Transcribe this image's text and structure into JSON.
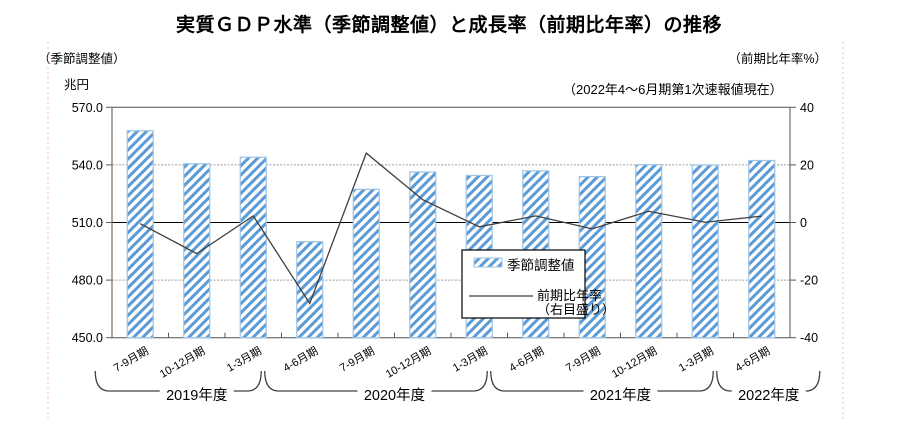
{
  "title": "実質ＧＤＰ水準（季節調整値）と成長率（前期比年率）の推移",
  "header": {
    "left_label": "（季節調整値）",
    "left_unit": "兆円",
    "right_label": "（前期比年率%）",
    "vintage_note": "（2022年4～6月期第1次速報値現在）"
  },
  "legend": {
    "bar_label": "季節調整値",
    "line_label": "前期比年率",
    "line_sublabel": "（右目盛り）"
  },
  "chart_data": {
    "type": "bar+line combo",
    "categories": [
      "7-9月期",
      "10-12月期",
      "1-3月期",
      "4-6月期",
      "7-9月期",
      "10-12月期",
      "1-3月期",
      "4-6月期",
      "7-9月期",
      "10-12月期",
      "1-3月期",
      "4-6月期"
    ],
    "fiscal_year_groups": [
      {
        "label": "2019年度",
        "from": 0,
        "to": 2
      },
      {
        "label": "2020年度",
        "from": 3,
        "to": 6
      },
      {
        "label": "2021年度",
        "from": 7,
        "to": 10
      },
      {
        "label": "2022年度",
        "from": 11,
        "to": 11
      }
    ],
    "series": [
      {
        "name": "季節調整値",
        "type": "bar",
        "axis": "left",
        "unit": "兆円",
        "values": [
          557.8,
          540.6,
          544.0,
          500.0,
          527.3,
          536.3,
          534.5,
          536.9,
          533.9,
          540.1,
          539.9,
          542.3
        ]
      },
      {
        "name": "前期比年率（右目盛り）",
        "type": "line",
        "axis": "right",
        "unit": "%",
        "values": [
          -0.4,
          -10.8,
          2.3,
          -28.1,
          24.1,
          7.9,
          -1.5,
          2.3,
          -2.2,
          3.9,
          0.1,
          2.2
        ]
      }
    ],
    "left_axis": {
      "ticks": [
        "570.0",
        "540.0",
        "510.0",
        "480.0",
        "450.0"
      ],
      "min": 450,
      "max": 570
    },
    "right_axis": {
      "ticks": [
        "40",
        "20",
        "0",
        "-20",
        "-40"
      ],
      "min": -40,
      "max": 40,
      "zero_at": "0"
    },
    "grid": "horizontal gridlines at 480/510/540, zero line solid",
    "legend_position": "inside center",
    "colors": {
      "bar_stripe": "#5B9BD5",
      "bar_border": "#9DC3E6",
      "line": "#3F3F3F",
      "grid": "#9E9E9E",
      "zero_line": "#000000",
      "frame": "#6E6E6E",
      "page_break": "#F2AEC3"
    }
  }
}
